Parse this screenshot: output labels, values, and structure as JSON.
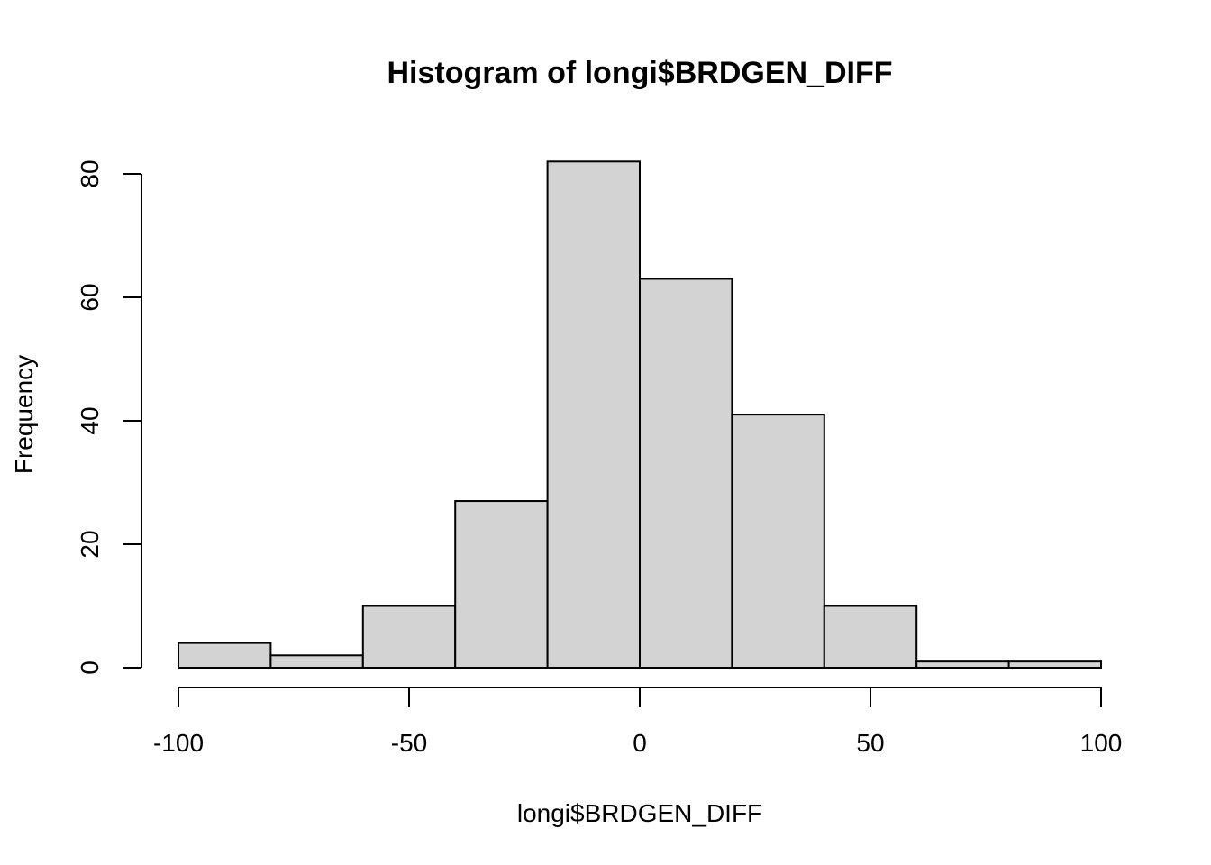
{
  "chart_data": {
    "type": "bar",
    "subtype": "histogram",
    "title": "Histogram of longi$BRDGEN_DIFF",
    "xlabel": "longi$BRDGEN_DIFF",
    "ylabel": "Frequency",
    "bins": [
      {
        "start": -100,
        "end": -80,
        "count": 4
      },
      {
        "start": -80,
        "end": -60,
        "count": 2
      },
      {
        "start": -60,
        "end": -40,
        "count": 10
      },
      {
        "start": -40,
        "end": -20,
        "count": 27
      },
      {
        "start": -20,
        "end": 0,
        "count": 82
      },
      {
        "start": 0,
        "end": 20,
        "count": 63
      },
      {
        "start": 20,
        "end": 40,
        "count": 41
      },
      {
        "start": 40,
        "end": 60,
        "count": 10
      },
      {
        "start": 60,
        "end": 80,
        "count": 1
      },
      {
        "start": 80,
        "end": 100,
        "count": 1
      }
    ],
    "xlim": [
      -100,
      100
    ],
    "ylim": [
      0,
      82
    ],
    "xticks": [
      -100,
      -50,
      0,
      50,
      100
    ],
    "xtick_labels": [
      "-100",
      "-50",
      "0",
      "50",
      "100"
    ],
    "yticks": [
      0,
      20,
      40,
      60,
      80
    ],
    "ytick_labels": [
      "0",
      "20",
      "40",
      "60",
      "80"
    ],
    "grid": false,
    "legend": "none",
    "colors": {
      "bar_fill": "#d3d3d3",
      "bar_stroke": "#000000",
      "background": "#ffffff"
    }
  }
}
